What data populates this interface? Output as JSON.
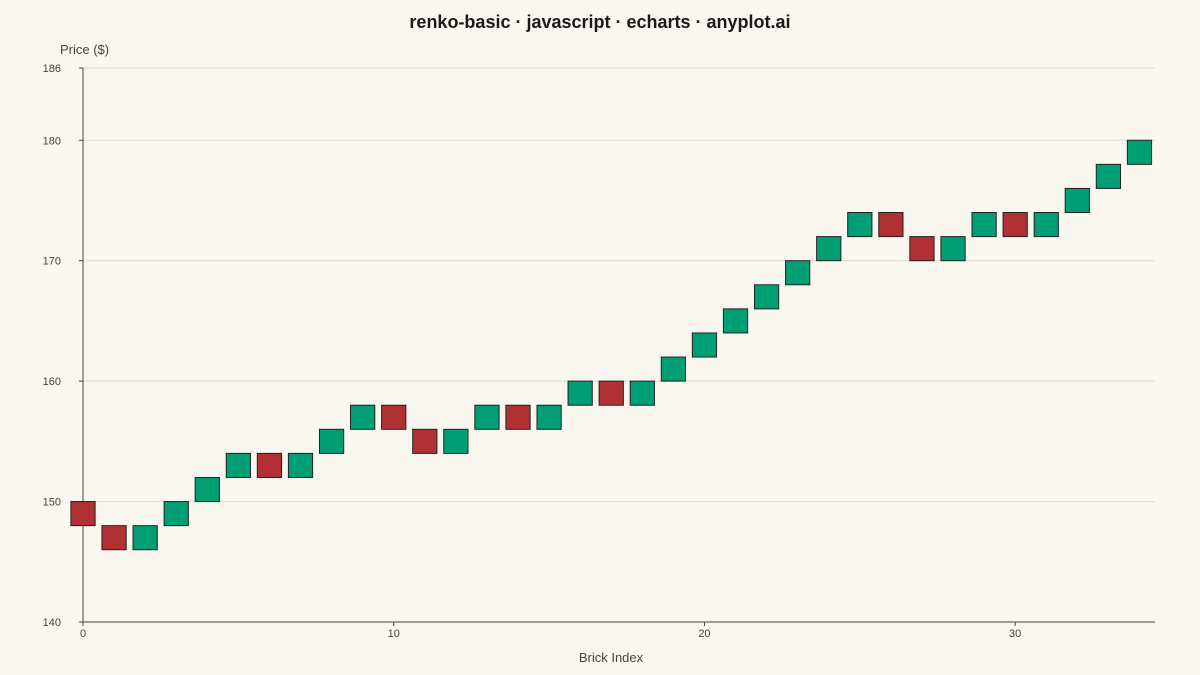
{
  "chart_data": {
    "type": "bar",
    "subtype": "renko",
    "title": "renko-basic · javascript · echarts · anyplot.ai",
    "xlabel": "Brick Index",
    "ylabel": "Price ($)",
    "xlim": [
      0,
      34.5
    ],
    "ylim": [
      140,
      186
    ],
    "xticks": [
      0,
      10,
      20,
      30
    ],
    "yticks": [
      140,
      150,
      160,
      170,
      180,
      186
    ],
    "grid": true,
    "brick_size": 2,
    "colors": {
      "up": "#009e73",
      "down": "#b03034",
      "border": "#222222"
    },
    "bricks": [
      {
        "index": 0,
        "low": 148,
        "high": 150,
        "direction": "down"
      },
      {
        "index": 1,
        "low": 146,
        "high": 148,
        "direction": "down"
      },
      {
        "index": 2,
        "low": 146,
        "high": 148,
        "direction": "up"
      },
      {
        "index": 3,
        "low": 148,
        "high": 150,
        "direction": "up"
      },
      {
        "index": 4,
        "low": 150,
        "high": 152,
        "direction": "up"
      },
      {
        "index": 5,
        "low": 152,
        "high": 154,
        "direction": "up"
      },
      {
        "index": 6,
        "low": 152,
        "high": 154,
        "direction": "down"
      },
      {
        "index": 7,
        "low": 152,
        "high": 154,
        "direction": "up"
      },
      {
        "index": 8,
        "low": 154,
        "high": 156,
        "direction": "up"
      },
      {
        "index": 9,
        "low": 156,
        "high": 158,
        "direction": "up"
      },
      {
        "index": 10,
        "low": 156,
        "high": 158,
        "direction": "down"
      },
      {
        "index": 11,
        "low": 154,
        "high": 156,
        "direction": "down"
      },
      {
        "index": 12,
        "low": 154,
        "high": 156,
        "direction": "up"
      },
      {
        "index": 13,
        "low": 156,
        "high": 158,
        "direction": "up"
      },
      {
        "index": 14,
        "low": 156,
        "high": 158,
        "direction": "down"
      },
      {
        "index": 15,
        "low": 156,
        "high": 158,
        "direction": "up"
      },
      {
        "index": 16,
        "low": 158,
        "high": 160,
        "direction": "up"
      },
      {
        "index": 17,
        "low": 158,
        "high": 160,
        "direction": "down"
      },
      {
        "index": 18,
        "low": 158,
        "high": 160,
        "direction": "up"
      },
      {
        "index": 19,
        "low": 160,
        "high": 162,
        "direction": "up"
      },
      {
        "index": 20,
        "low": 162,
        "high": 164,
        "direction": "up"
      },
      {
        "index": 21,
        "low": 164,
        "high": 166,
        "direction": "up"
      },
      {
        "index": 22,
        "low": 166,
        "high": 168,
        "direction": "up"
      },
      {
        "index": 23,
        "low": 168,
        "high": 170,
        "direction": "up"
      },
      {
        "index": 24,
        "low": 170,
        "high": 172,
        "direction": "up"
      },
      {
        "index": 25,
        "low": 172,
        "high": 174,
        "direction": "up"
      },
      {
        "index": 26,
        "low": 172,
        "high": 174,
        "direction": "down"
      },
      {
        "index": 27,
        "low": 170,
        "high": 172,
        "direction": "down"
      },
      {
        "index": 28,
        "low": 170,
        "high": 172,
        "direction": "up"
      },
      {
        "index": 29,
        "low": 172,
        "high": 174,
        "direction": "up"
      },
      {
        "index": 30,
        "low": 172,
        "high": 174,
        "direction": "down"
      },
      {
        "index": 31,
        "low": 172,
        "high": 174,
        "direction": "up"
      },
      {
        "index": 32,
        "low": 174,
        "high": 176,
        "direction": "up"
      },
      {
        "index": 33,
        "low": 176,
        "high": 178,
        "direction": "up"
      },
      {
        "index": 34,
        "low": 178,
        "high": 180,
        "direction": "up"
      }
    ]
  }
}
